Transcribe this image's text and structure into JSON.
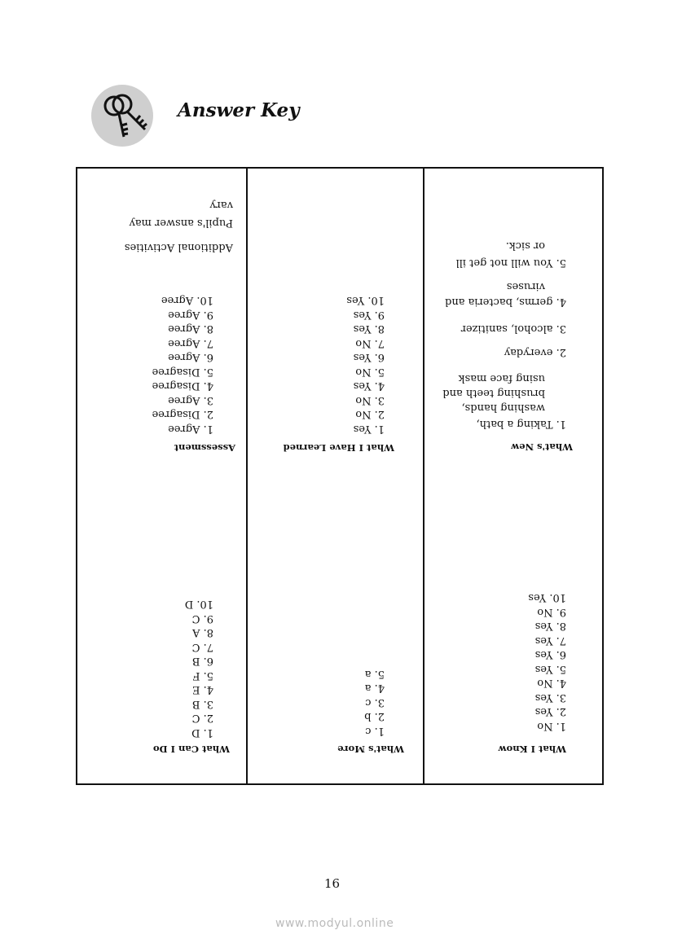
{
  "title": "Answer Key",
  "icon": "keys-icon",
  "columns": [
    {
      "sections": [
        {
          "header": "What I Know",
          "items": [
            "1. No",
            "2. Yes",
            "3. Yes",
            "4. No",
            "5. Yes",
            "6. Yes",
            "7. Yes",
            "8. Yes",
            "9. No",
            "10. Yes"
          ]
        },
        {
          "header": "What's New",
          "items": [
            "1. Taking a bath,",
            "washing hands,",
            "brushing teeth and",
            "using face mask",
            "2. everyday",
            "3. alcohol, sanitizer",
            "4. germs, bacteria and",
            "viruses",
            "5. You will not get ill",
            "or sick."
          ]
        }
      ]
    },
    {
      "sections": [
        {
          "header": "What's More",
          "items": [
            "1. c",
            "2. b",
            "3. c",
            "4. a",
            "5. a"
          ]
        },
        {
          "header": "What I Have Learned",
          "items": [
            "1. Yes",
            "2. No",
            "3. No",
            "4. Yes",
            "5. No",
            "6. Yes",
            "7. No",
            "8. Yes",
            "9. Yes",
            "10. Yes"
          ]
        }
      ]
    },
    {
      "sections": [
        {
          "header": "What Can I Do",
          "items": [
            "1. D",
            "2. C",
            "3. B",
            "4. E",
            "5. F",
            "6. B",
            "7. C",
            "8. A",
            "9. C",
            "10. D"
          ]
        },
        {
          "header": "Assessment",
          "items": [
            "1. Agree",
            "2. Disagree",
            "3. Agree",
            "4. Disagree",
            "5. Disagree",
            "6. Agree",
            "7. Agree",
            "8. Agree",
            "9. Agree",
            "10. Agree"
          ]
        },
        {
          "header": "Additional Activities",
          "items": [
            "Pupil's answer may",
            "vary"
          ]
        }
      ]
    }
  ],
  "page_number": "16",
  "watermark": "www.modyul.online"
}
